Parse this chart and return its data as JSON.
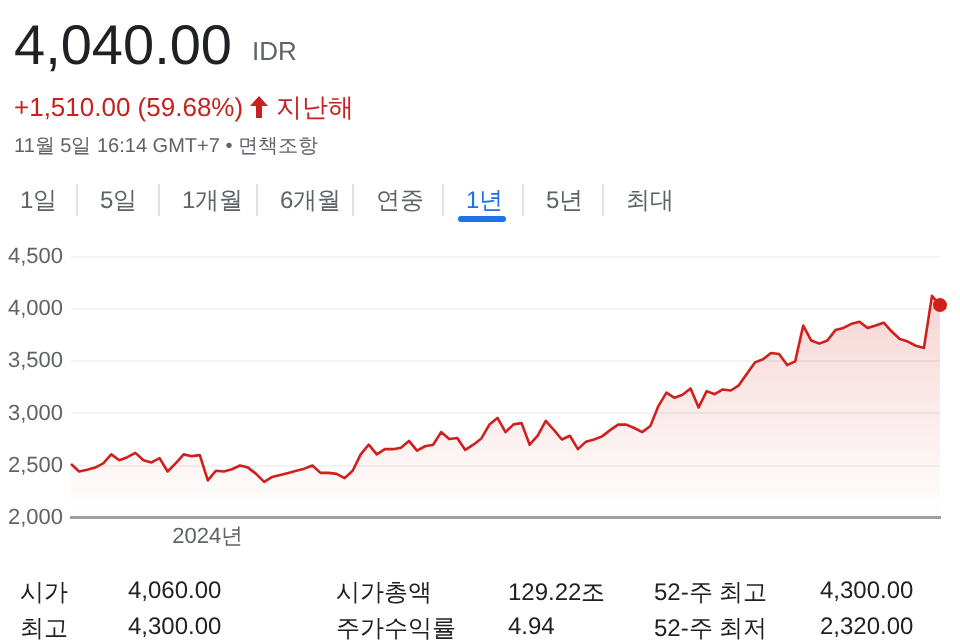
{
  "chart_data": {
    "type": "area",
    "title": "4,040.00",
    "annotations": [
      "IDR",
      "+1,510.00 (59.68%)",
      "지난해",
      "11월 5일 16:14 GMT+7 • 면책조항",
      "1일",
      "5일",
      "1개월",
      "6개월",
      "연중",
      "1년",
      "5년",
      "최대",
      "시가",
      "4,060.00",
      "시가총액",
      "129.22조",
      "52-주 최고",
      "4,300.00",
      "최고",
      "4,300.00",
      "주가수익률",
      "4.94",
      "52-주 최저",
      "2,320.00"
    ],
    "categories": [
      null,
      null,
      null,
      null,
      null,
      null,
      null,
      null,
      null,
      null,
      null,
      null,
      null,
      null,
      null,
      null,
      null,
      "2024년",
      null,
      null,
      null,
      null,
      null,
      null,
      null,
      null,
      null,
      null,
      null,
      null,
      null,
      null,
      null,
      null,
      null,
      null,
      null,
      null,
      null,
      null,
      null,
      null,
      null,
      null,
      null,
      null,
      null,
      null,
      null,
      null,
      null,
      null,
      null,
      null,
      null,
      null,
      null,
      null,
      null,
      null,
      null,
      null,
      null,
      null,
      null,
      null,
      null,
      null,
      null,
      null,
      null,
      null,
      null,
      null,
      null,
      null,
      null,
      null,
      null,
      null,
      null,
      null,
      null,
      null,
      null,
      null,
      null,
      null,
      null,
      null,
      null,
      null,
      null,
      null,
      null,
      null,
      null,
      null,
      null,
      null,
      null,
      null,
      null,
      null,
      null,
      null,
      null,
      null,
      null
    ],
    "series": [
      {
        "color": "#d0201c",
        "values": [
          2514,
          2443,
          2460,
          2480,
          2520,
          2607,
          2550,
          2580,
          2621,
          2550,
          2530,
          2571,
          2443,
          2520,
          2607,
          2590,
          2600,
          2357,
          2450,
          2443,
          2464,
          2500,
          2480,
          2420,
          2343,
          2390,
          2410,
          2429,
          2450,
          2470,
          2500,
          2429,
          2429,
          2420,
          2379,
          2450,
          2607,
          2700,
          2607,
          2657,
          2657,
          2670,
          2736,
          2643,
          2685,
          2700,
          2821,
          2755,
          2764,
          2650,
          2700,
          2760,
          2893,
          2957,
          2821,
          2895,
          2907,
          2700,
          2786,
          2929,
          2843,
          2750,
          2786,
          2657,
          2729,
          2750,
          2780,
          2840,
          2893,
          2893,
          2860,
          2821,
          2880,
          3071,
          3200,
          3150,
          3179,
          3240,
          3057,
          3214,
          3185,
          3230,
          3220,
          3270,
          3380,
          3490,
          3520,
          3580,
          3571,
          3464,
          3500,
          3843,
          3700,
          3670,
          3700,
          3800,
          3821,
          3860,
          3880,
          3820,
          3845,
          3871,
          3786,
          3714,
          3690,
          3650,
          3629,
          4129,
          4040
        ]
      }
    ],
    "ylim": [
      2000,
      4500
    ],
    "yticks": [
      {
        "value": 2000,
        "label": "2,000"
      },
      {
        "value": 2500,
        "label": "2,500"
      },
      {
        "value": 3000,
        "label": "3,000"
      },
      {
        "value": 3500,
        "label": "3,500"
      },
      {
        "value": 4000,
        "label": "4,000"
      },
      {
        "value": 4500,
        "label": "4,500"
      }
    ],
    "grid": "y"
  }
}
